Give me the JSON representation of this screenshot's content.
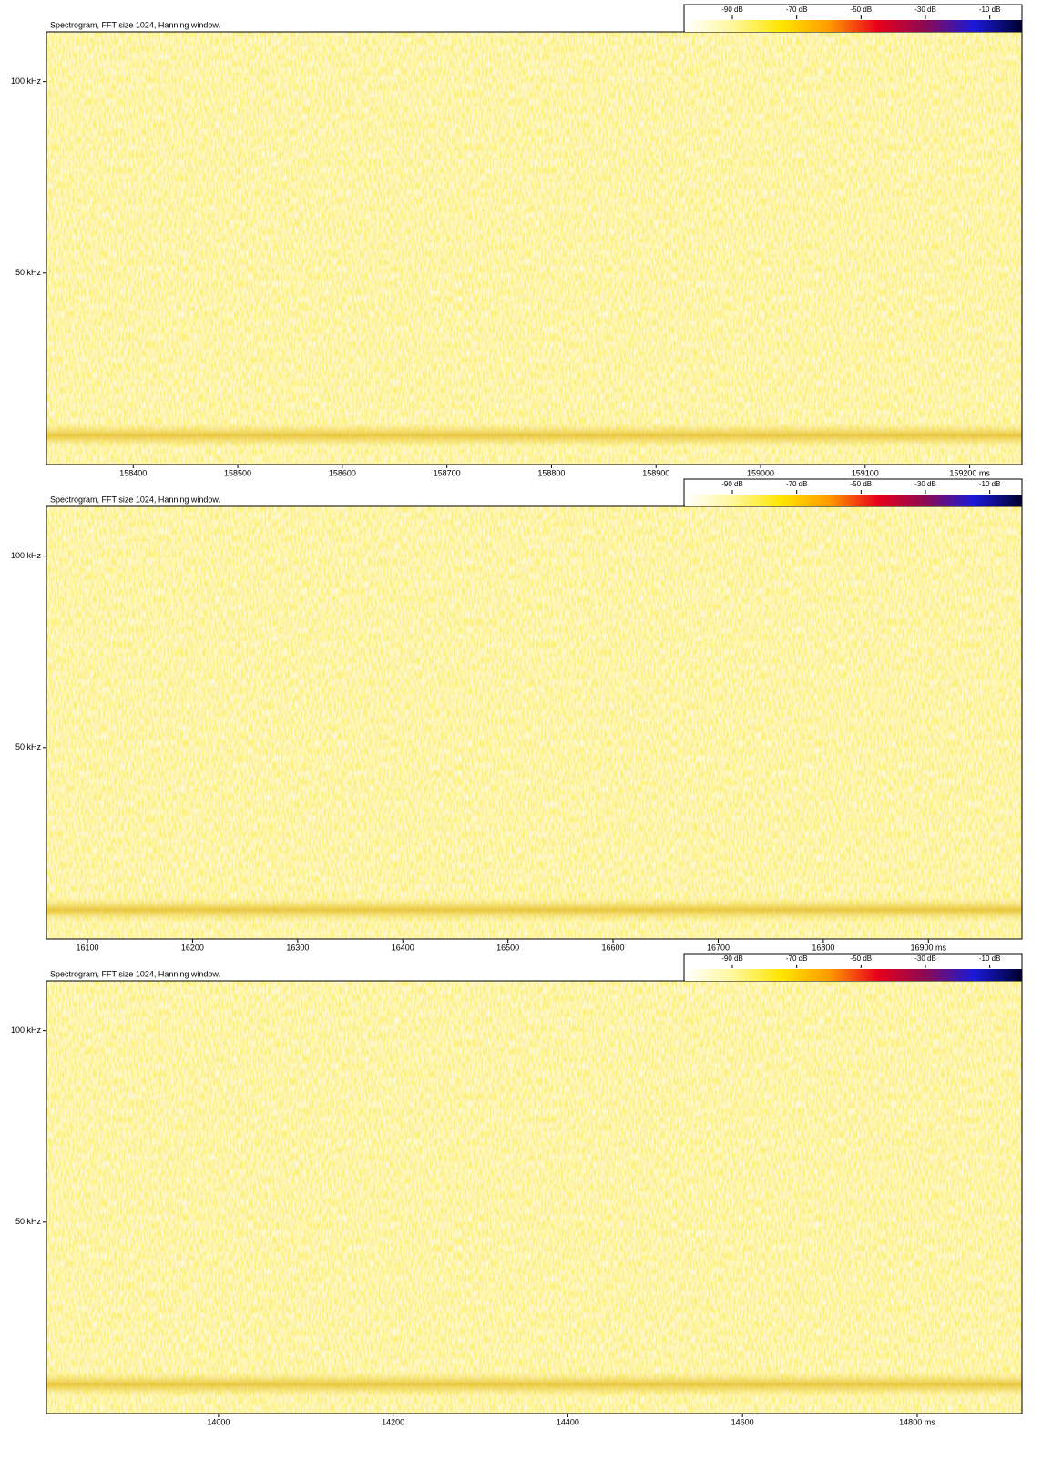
{
  "chart_data": [
    {
      "type": "spectrogram",
      "title": "Spectrogram, FFT size 1024, Hanning window.",
      "xlim": [
        158317,
        159250
      ],
      "xticks": [
        158400,
        158500,
        158600,
        158700,
        158800,
        158900,
        159000,
        159100,
        {
          "value": 159200,
          "label": "159200 ms"
        }
      ],
      "ylim": [
        0,
        113
      ],
      "yticks": [
        {
          "value": 50,
          "label": "50 kHz"
        },
        {
          "value": 100,
          "label": "100 kHz"
        }
      ],
      "clim": [
        -105,
        0
      ],
      "cticks": [
        {
          "value": -90,
          "label": "-90 dB"
        },
        {
          "value": -70,
          "label": "-70 dB"
        },
        {
          "value": -50,
          "label": "-50 dB"
        },
        {
          "value": -30,
          "label": "-30 dB"
        },
        {
          "value": -10,
          "label": "-10 dB"
        }
      ],
      "colormap": [
        "#ffffff",
        "#fff79a",
        "#ffe600",
        "#ff9a00",
        "#e8001a",
        "#8a0a55",
        "#1a1ad8",
        "#000030"
      ]
    },
    {
      "type": "spectrogram",
      "title": "Spectrogram, FFT size 1024, Hanning window.",
      "xlim": [
        16061,
        16989
      ],
      "xticks": [
        16100,
        16200,
        16300,
        16400,
        16500,
        16600,
        16700,
        16800,
        {
          "value": 16900,
          "label": "16900 ms"
        }
      ],
      "ylim": [
        0,
        113
      ],
      "yticks": [
        {
          "value": 50,
          "label": "50 kHz"
        },
        {
          "value": 100,
          "label": "100 kHz"
        }
      ],
      "clim": [
        -105,
        0
      ],
      "cticks": [
        {
          "value": -90,
          "label": "-90 dB"
        },
        {
          "value": -70,
          "label": "-70 dB"
        },
        {
          "value": -50,
          "label": "-50 dB"
        },
        {
          "value": -30,
          "label": "-30 dB"
        },
        {
          "value": -10,
          "label": "-10 dB"
        }
      ],
      "colormap": [
        "#ffffff",
        "#fff79a",
        "#ffe600",
        "#ff9a00",
        "#e8001a",
        "#8a0a55",
        "#1a1ad8",
        "#000030"
      ]
    },
    {
      "type": "spectrogram",
      "title": "Spectrogram, FFT size 1024, Hanning window.",
      "xlim": [
        13803,
        14920
      ],
      "xticks": [
        14000,
        14200,
        14400,
        14600,
        {
          "value": 14800,
          "label": "14800 ms"
        }
      ],
      "ylim": [
        0,
        113
      ],
      "yticks": [
        {
          "value": 50,
          "label": "50 kHz"
        },
        {
          "value": 100,
          "label": "100 kHz"
        }
      ],
      "clim": [
        -105,
        0
      ],
      "cticks": [
        {
          "value": -90,
          "label": "-90 dB"
        },
        {
          "value": -70,
          "label": "-70 dB"
        },
        {
          "value": -50,
          "label": "-50 dB"
        },
        {
          "value": -30,
          "label": "-30 dB"
        },
        {
          "value": -10,
          "label": "-10 dB"
        }
      ],
      "colormap": [
        "#ffffff",
        "#fff79a",
        "#ffe600",
        "#ff9a00",
        "#e8001a",
        "#8a0a55",
        "#1a1ad8",
        "#000030"
      ]
    }
  ]
}
